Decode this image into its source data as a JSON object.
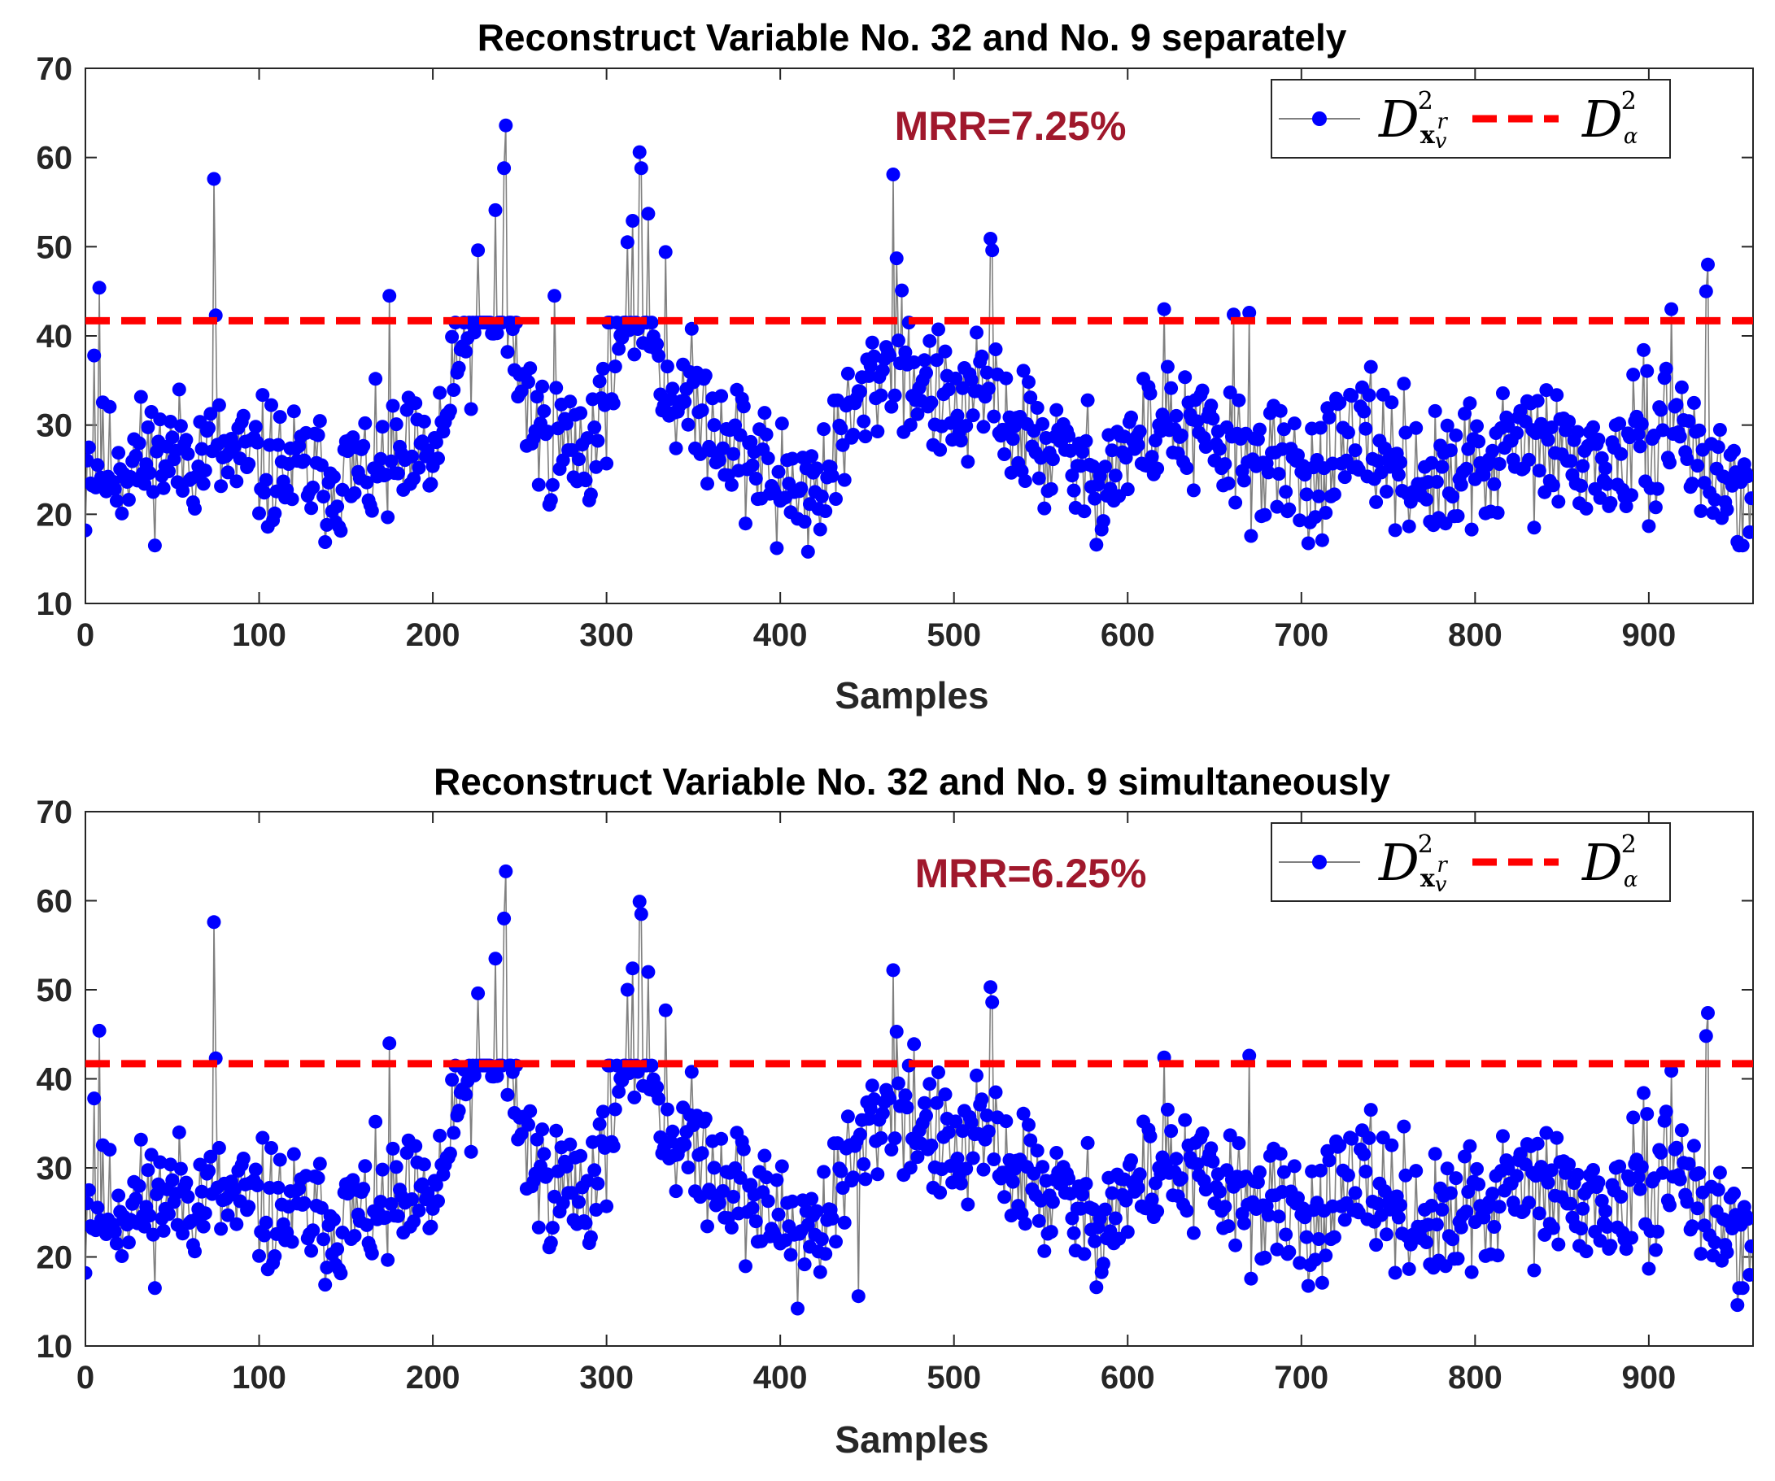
{
  "chart_data": [
    {
      "type": "line",
      "title": "Reconstruct Variable No. 32 and No. 9 separately",
      "xlabel": "Samples",
      "ylabel": "",
      "xlim": [
        0,
        960
      ],
      "ylim": [
        10,
        70
      ],
      "xticks": [
        0,
        100,
        200,
        300,
        400,
        500,
        600,
        700,
        800,
        900
      ],
      "yticks": [
        10,
        20,
        30,
        40,
        50,
        60,
        70
      ],
      "annotation": {
        "text": "MRR=7.25%",
        "color": "#A0182C"
      },
      "legend": {
        "position": "top-right",
        "entries": [
          "D^2_{x_v^r}",
          "D^2_α"
        ]
      },
      "series": [
        {
          "name": "D^2_{x_v^r}",
          "color": "#0000FF",
          "line_color": "#808080",
          "marker": "circle",
          "seed": 11,
          "x": [
            0,
            960
          ]
        },
        {
          "name": "D^2_α",
          "color": "#FF0000",
          "style": "dashed",
          "x": [
            0,
            960
          ],
          "values": [
            41.7,
            41.7
          ]
        }
      ],
      "key_points": [
        {
          "x": 0,
          "y": 18.2
        },
        {
          "x": 2,
          "y": 27.5
        },
        {
          "x": 5,
          "y": 37.8
        },
        {
          "x": 8,
          "y": 45.4
        },
        {
          "x": 74,
          "y": 57.6
        },
        {
          "x": 75,
          "y": 42.3
        },
        {
          "x": 175,
          "y": 44.5
        },
        {
          "x": 218,
          "y": 41.5
        },
        {
          "x": 226,
          "y": 49.6
        },
        {
          "x": 236,
          "y": 54.1
        },
        {
          "x": 241,
          "y": 58.8
        },
        {
          "x": 242,
          "y": 63.6
        },
        {
          "x": 270,
          "y": 44.5
        },
        {
          "x": 312,
          "y": 50.5
        },
        {
          "x": 315,
          "y": 52.9
        },
        {
          "x": 319,
          "y": 60.6
        },
        {
          "x": 320,
          "y": 58.8
        },
        {
          "x": 324,
          "y": 53.7
        },
        {
          "x": 334,
          "y": 49.4
        },
        {
          "x": 398,
          "y": 16.2
        },
        {
          "x": 416,
          "y": 15.8
        },
        {
          "x": 465,
          "y": 58.1
        },
        {
          "x": 467,
          "y": 48.7
        },
        {
          "x": 470,
          "y": 45.1
        },
        {
          "x": 521,
          "y": 50.9
        },
        {
          "x": 522,
          "y": 49.6
        },
        {
          "x": 621,
          "y": 43.0
        },
        {
          "x": 661,
          "y": 42.4
        },
        {
          "x": 670,
          "y": 42.6
        },
        {
          "x": 913,
          "y": 43.0
        },
        {
          "x": 934,
          "y": 48.0
        },
        {
          "x": 933,
          "y": 45.0
        },
        {
          "x": 951,
          "y": 16.9
        },
        {
          "x": 959,
          "y": 21.8
        }
      ]
    },
    {
      "type": "line",
      "title": "Reconstruct Variable No. 32 and No. 9 simultaneously",
      "xlabel": "Samples",
      "ylabel": "",
      "xlim": [
        0,
        960
      ],
      "ylim": [
        10,
        70
      ],
      "xticks": [
        0,
        100,
        200,
        300,
        400,
        500,
        600,
        700,
        800,
        900
      ],
      "yticks": [
        10,
        20,
        30,
        40,
        50,
        60,
        70
      ],
      "annotation": {
        "text": "MRR=6.25%",
        "color": "#A0182C"
      },
      "legend": {
        "position": "top-right",
        "entries": [
          "D^2_{x_v^r}",
          "D^2_α"
        ]
      },
      "series": [
        {
          "name": "D^2_{x_v^r}",
          "color": "#0000FF",
          "line_color": "#808080",
          "marker": "circle",
          "seed": 11,
          "x": [
            0,
            960
          ]
        },
        {
          "name": "D^2_α",
          "color": "#FF0000",
          "style": "dashed",
          "x": [
            0,
            960
          ],
          "values": [
            41.7,
            41.7
          ]
        }
      ],
      "key_points": [
        {
          "x": 0,
          "y": 18.2
        },
        {
          "x": 2,
          "y": 27.5
        },
        {
          "x": 5,
          "y": 37.8
        },
        {
          "x": 8,
          "y": 45.4
        },
        {
          "x": 74,
          "y": 57.6
        },
        {
          "x": 75,
          "y": 42.3
        },
        {
          "x": 175,
          "y": 44.0
        },
        {
          "x": 218,
          "y": 41.0
        },
        {
          "x": 226,
          "y": 49.6
        },
        {
          "x": 236,
          "y": 53.5
        },
        {
          "x": 241,
          "y": 58.0
        },
        {
          "x": 242,
          "y": 63.3
        },
        {
          "x": 312,
          "y": 50.0
        },
        {
          "x": 315,
          "y": 52.4
        },
        {
          "x": 319,
          "y": 59.9
        },
        {
          "x": 320,
          "y": 58.5
        },
        {
          "x": 324,
          "y": 52.0
        },
        {
          "x": 334,
          "y": 47.7
        },
        {
          "x": 410,
          "y": 14.2
        },
        {
          "x": 445,
          "y": 15.6
        },
        {
          "x": 465,
          "y": 52.2
        },
        {
          "x": 467,
          "y": 45.3
        },
        {
          "x": 477,
          "y": 43.9
        },
        {
          "x": 521,
          "y": 50.3
        },
        {
          "x": 522,
          "y": 48.6
        },
        {
          "x": 621,
          "y": 42.4
        },
        {
          "x": 670,
          "y": 42.6
        },
        {
          "x": 913,
          "y": 40.9
        },
        {
          "x": 934,
          "y": 47.4
        },
        {
          "x": 933,
          "y": 44.8
        },
        {
          "x": 951,
          "y": 14.6
        },
        {
          "x": 959,
          "y": 21.2
        }
      ]
    }
  ]
}
